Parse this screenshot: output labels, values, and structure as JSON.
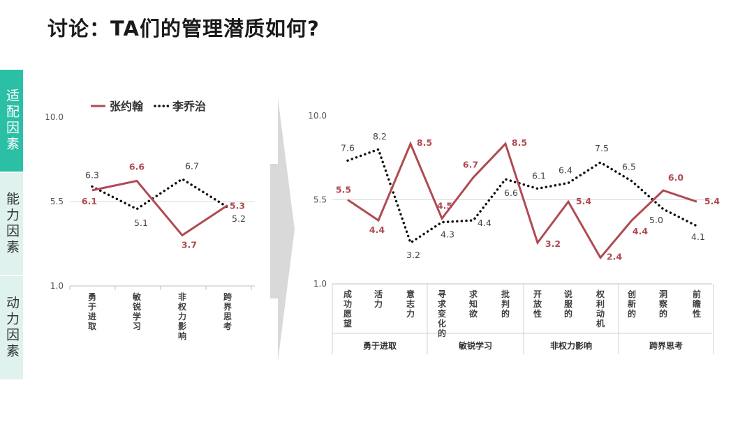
{
  "title": "讨论：TA们的管理潜质如何?",
  "sidebar": [
    {
      "label": "适配因素",
      "active": true
    },
    {
      "label": "能力因素",
      "active": false
    },
    {
      "label": "动力因素",
      "active": false
    }
  ],
  "colors": {
    "zhang": "#b04a52",
    "li": "#111111",
    "accent": "#2bbfa6",
    "arrow": "#d9d9d9"
  },
  "chart_data": [
    {
      "type": "line",
      "legend": "top",
      "categories": [
        "勇于进取",
        "敏锐学习",
        "非权力影响",
        "跨界思考"
      ],
      "yticks": [
        "10.0",
        "5.5",
        "1.0"
      ],
      "ylim": [
        1,
        10
      ],
      "series": [
        {
          "name": "张约翰",
          "style": "solid",
          "values": [
            6.1,
            6.6,
            3.7,
            5.3
          ]
        },
        {
          "name": "李乔治",
          "style": "dotted",
          "values": [
            6.3,
            5.1,
            6.7,
            5.2
          ]
        }
      ]
    },
    {
      "type": "line",
      "yticks": [
        "10.0",
        "5.5",
        "1.0"
      ],
      "ylim": [
        1,
        10
      ],
      "categories": [
        "成功愿望",
        "活力",
        "意志力",
        "寻求变化的",
        "求知欲",
        "批判的",
        "开放性",
        "说服的",
        "权利动机",
        "创新的",
        "洞察的",
        "前瞻性"
      ],
      "groups": [
        {
          "label": "勇于进取",
          "span": 3
        },
        {
          "label": "敏锐学习",
          "span": 3
        },
        {
          "label": "非权力影响",
          "span": 3
        },
        {
          "label": "跨界思考",
          "span": 3
        }
      ],
      "series": [
        {
          "name": "张约翰",
          "style": "solid",
          "values": [
            5.5,
            4.4,
            8.5,
            4.5,
            6.7,
            8.5,
            3.2,
            5.4,
            2.4,
            4.4,
            6.0,
            5.4
          ]
        },
        {
          "name": "李乔治",
          "style": "dotted",
          "values": [
            7.6,
            8.2,
            3.2,
            4.3,
            4.4,
            6.6,
            6.1,
            6.4,
            7.5,
            6.5,
            5.0,
            4.1
          ]
        }
      ]
    }
  ]
}
